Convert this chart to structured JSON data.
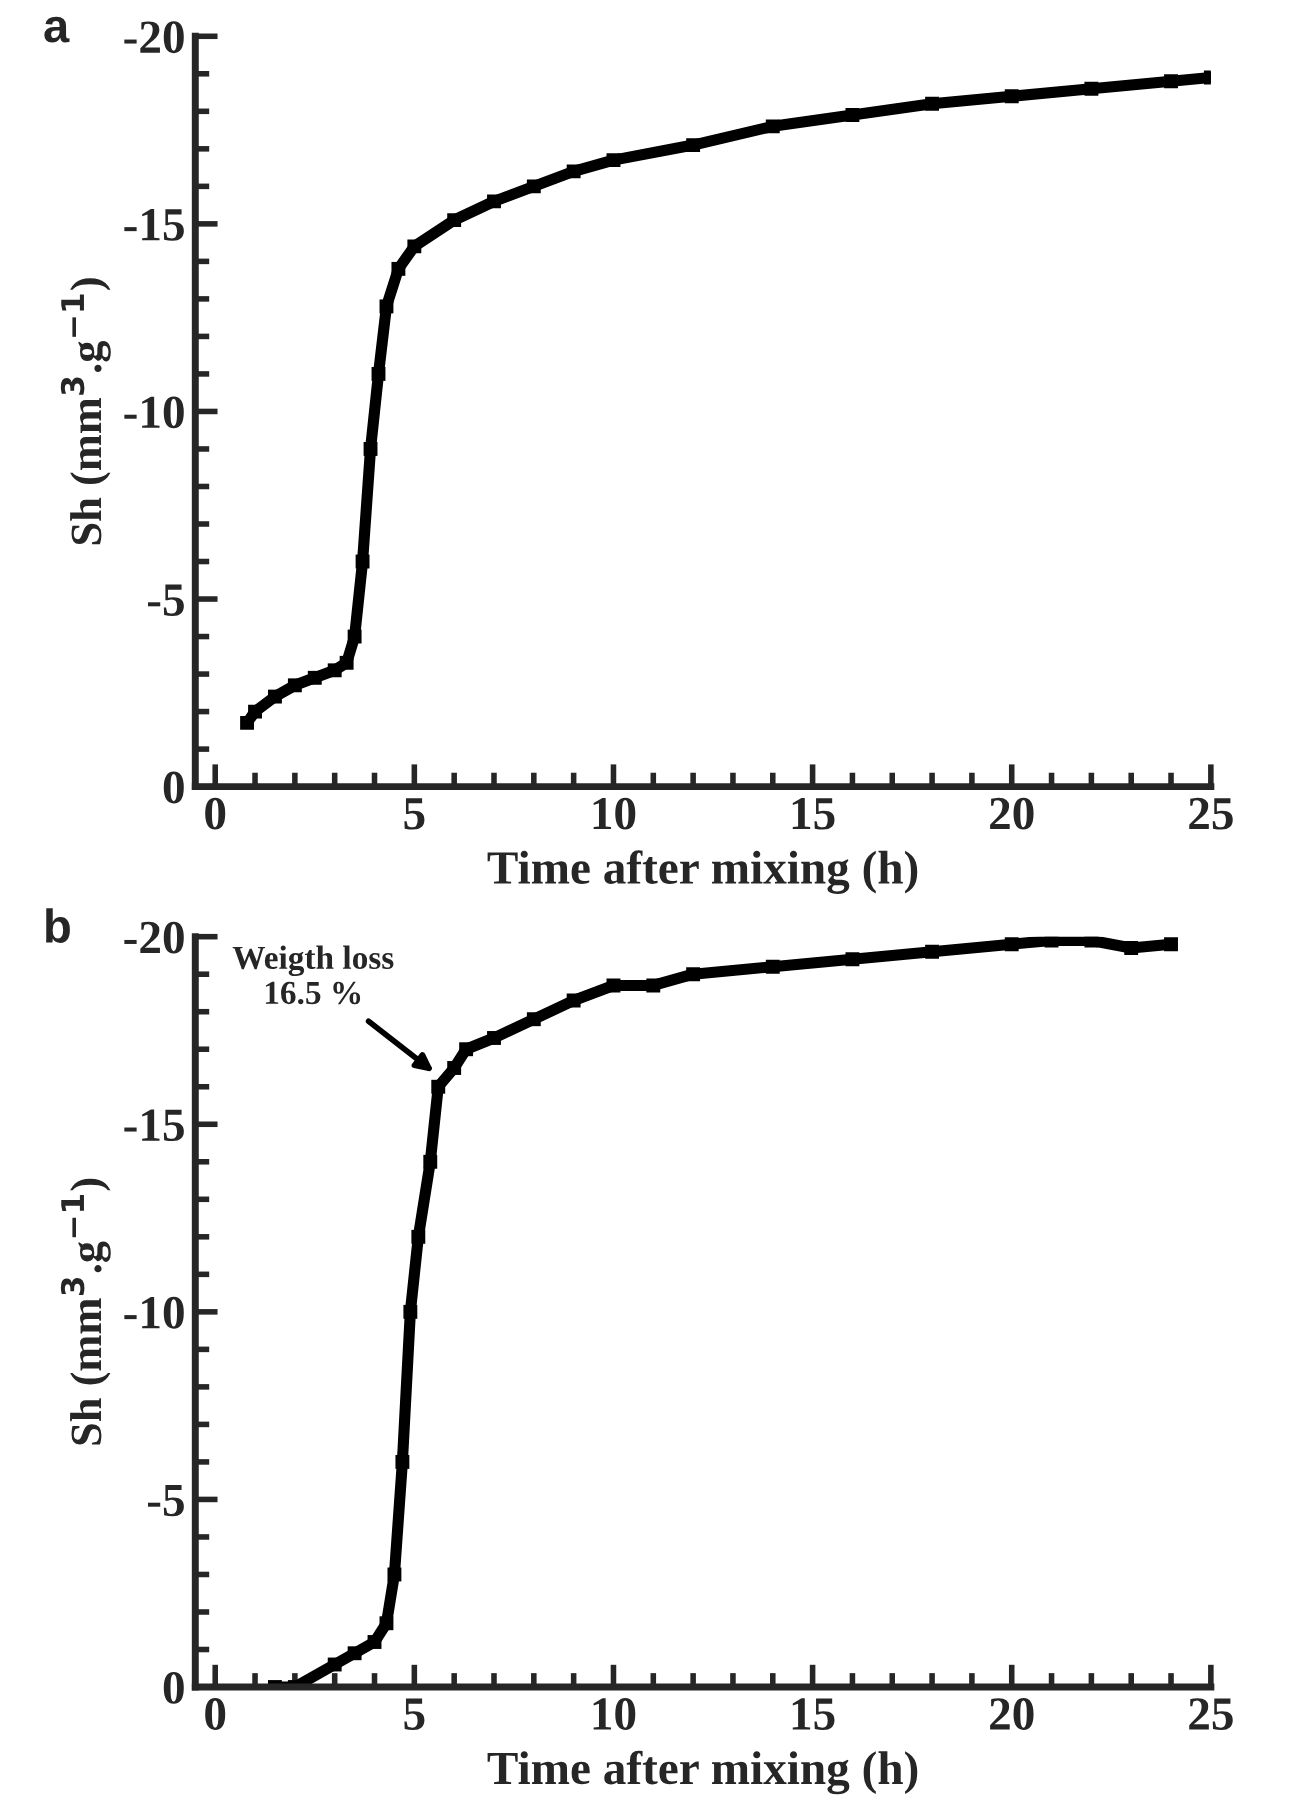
{
  "chart_data": [
    {
      "type": "line",
      "title": "a",
      "xlabel": "Time after mixing (h)",
      "ylabel": "Sh (mm$^{3}$.g$^{−1}$)",
      "xlim": [
        -0.5,
        25
      ],
      "ylim": [
        0,
        -20
      ],
      "xticks": [
        0,
        5,
        10,
        15,
        20,
        25
      ],
      "yticks": [
        0,
        -5,
        -10,
        -15,
        -20
      ],
      "grid": false,
      "legend": false,
      "marker": "square",
      "line_style": "solid",
      "series": [
        {
          "color": "#000000",
          "x": [
            0.8,
            1,
            1.5,
            2,
            2.5,
            3,
            3.3,
            3.5,
            3.7,
            3.9,
            4.1,
            4.3,
            4.6,
            5,
            6,
            7,
            8,
            9,
            10,
            12,
            14,
            16,
            18,
            20,
            22,
            24,
            25
          ],
          "values": [
            -1.7,
            -2.0,
            -2.4,
            -2.7,
            -2.9,
            -3.1,
            -3.3,
            -4,
            -6,
            -9,
            -11,
            -12.8,
            -13.8,
            -14.4,
            -15.1,
            -15.6,
            -16.0,
            -16.4,
            -16.7,
            -17.1,
            -17.6,
            -17.9,
            -18.2,
            -18.4,
            -18.6,
            -18.8,
            -18.9
          ]
        }
      ]
    },
    {
      "type": "line",
      "title": "b",
      "xlabel": "Time after mixing (h)",
      "ylabel": "Sh (mm$^{3}$.g$^{−1}$)",
      "xlim": [
        -0.5,
        25
      ],
      "ylim": [
        0,
        -20
      ],
      "xticks": [
        0,
        5,
        10,
        15,
        20,
        25
      ],
      "yticks": [
        0,
        -5,
        -10,
        -15,
        -20
      ],
      "grid": false,
      "legend": false,
      "marker": "square",
      "line_style": "solid",
      "annotations": [
        {
          "text": "Weigth loss\n16.5 %",
          "x": 5.6,
          "y": -16.3
        }
      ],
      "series": [
        {
          "color": "#000000",
          "x": [
            1.5,
            2,
            3,
            3.5,
            4,
            4.3,
            4.5,
            4.7,
            4.9,
            5.1,
            5.4,
            5.6,
            6,
            6.3,
            7,
            8,
            9,
            10,
            11,
            12,
            14,
            16,
            18,
            20,
            21,
            22,
            23,
            24
          ],
          "values": [
            0,
            0,
            -0.6,
            -0.9,
            -1.2,
            -1.7,
            -3,
            -6,
            -10,
            -12,
            -14,
            -16,
            -16.5,
            -17,
            -17.3,
            -17.8,
            -18.3,
            -18.7,
            -18.7,
            -19.0,
            -19.2,
            -19.4,
            -19.6,
            -19.8,
            -19.9,
            -19.9,
            -19.7,
            -19.8
          ]
        }
      ]
    }
  ]
}
